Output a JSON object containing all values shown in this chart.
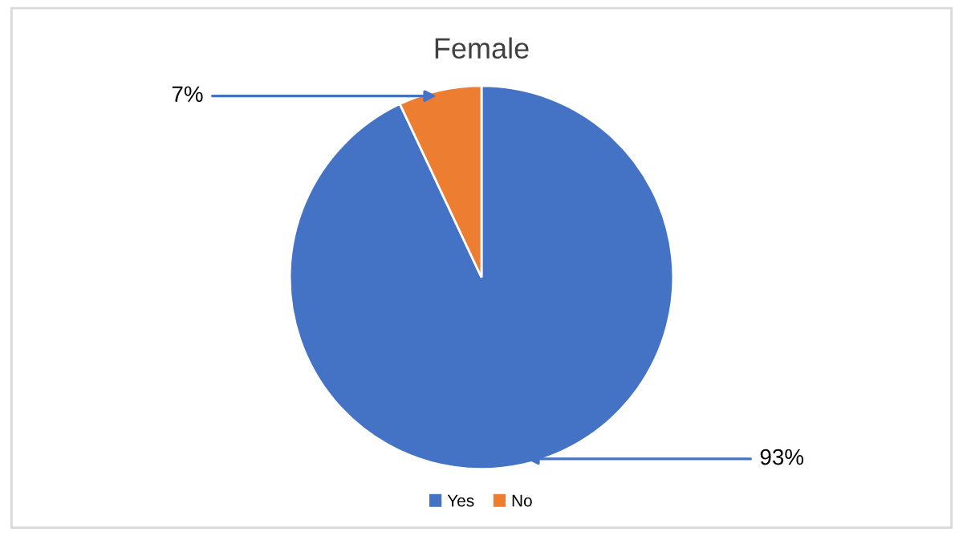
{
  "chart_data": {
    "type": "pie",
    "title": "Female",
    "categories": [
      "Yes",
      "No"
    ],
    "values": [
      93,
      7
    ],
    "colors": [
      "#4472c4",
      "#ed7d31"
    ],
    "value_labels": [
      "93%",
      "7%"
    ],
    "legend": "bottom"
  }
}
